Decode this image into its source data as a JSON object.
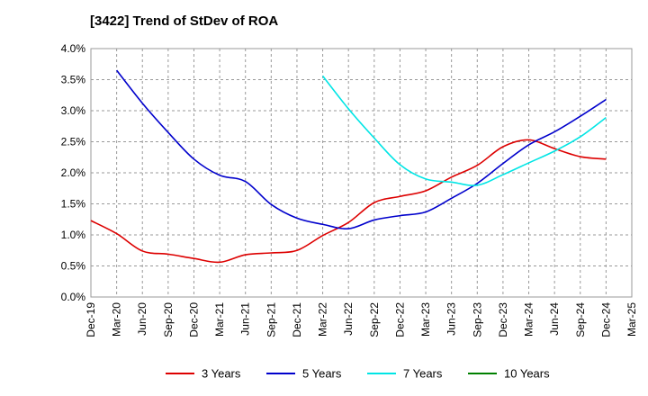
{
  "chart_data": {
    "type": "line",
    "title": "[3422]  Trend of StDev of ROA",
    "xlabel": "",
    "ylabel": "",
    "ylim": [
      0,
      4.0
    ],
    "yticks": [
      0,
      0.5,
      1.0,
      1.5,
      2.0,
      2.5,
      3.0,
      3.5,
      4.0
    ],
    "ytick_labels": [
      "0.0%",
      "0.5%",
      "1.0%",
      "1.5%",
      "2.0%",
      "2.5%",
      "3.0%",
      "3.5%",
      "4.0%"
    ],
    "categories": [
      "Dec-19",
      "Mar-20",
      "Jun-20",
      "Sep-20",
      "Dec-20",
      "Mar-21",
      "Jun-21",
      "Sep-21",
      "Dec-21",
      "Mar-22",
      "Jun-22",
      "Sep-22",
      "Dec-22",
      "Mar-23",
      "Jun-23",
      "Sep-23",
      "Dec-23",
      "Mar-24",
      "Jun-24",
      "Sep-24",
      "Dec-24",
      "Mar-25"
    ],
    "grid": true,
    "legend_position": "bottom",
    "series": [
      {
        "name": "3 Years",
        "color": "#dd0000",
        "values": [
          1.23,
          1.02,
          0.74,
          0.69,
          0.62,
          0.56,
          0.68,
          0.71,
          0.75,
          0.99,
          1.2,
          1.52,
          1.62,
          1.71,
          1.93,
          2.12,
          2.42,
          2.53,
          2.39,
          2.26,
          2.22,
          null
        ]
      },
      {
        "name": "5 Years",
        "color": "#0000cc",
        "values": [
          null,
          3.65,
          3.12,
          2.65,
          2.22,
          1.96,
          1.86,
          1.49,
          1.27,
          1.17,
          1.1,
          1.24,
          1.31,
          1.37,
          1.59,
          1.83,
          2.15,
          2.45,
          2.66,
          2.91,
          3.18,
          null
        ]
      },
      {
        "name": "7 Years",
        "color": "#00e5e5",
        "values": [
          null,
          null,
          null,
          null,
          null,
          null,
          null,
          null,
          null,
          3.56,
          3.03,
          2.56,
          2.13,
          1.9,
          1.85,
          1.8,
          1.97,
          2.16,
          2.35,
          2.58,
          2.89,
          null
        ]
      },
      {
        "name": "10 Years",
        "color": "#008000",
        "values": [
          null,
          null,
          null,
          null,
          null,
          null,
          null,
          null,
          null,
          null,
          null,
          null,
          null,
          null,
          null,
          null,
          null,
          null,
          null,
          null,
          null,
          null
        ]
      }
    ]
  }
}
